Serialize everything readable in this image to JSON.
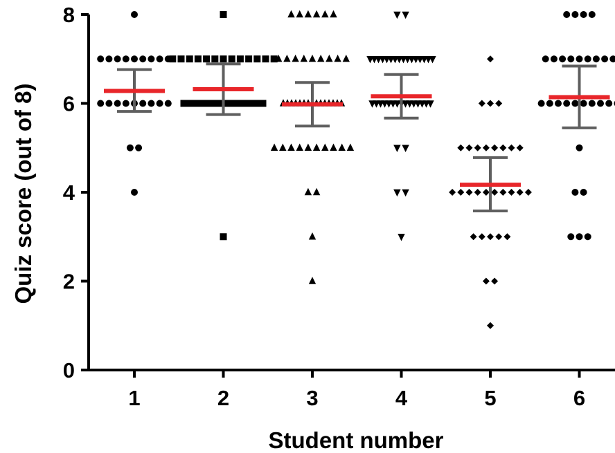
{
  "chart_data": {
    "type": "scatter",
    "xlabel": "Student number",
    "ylabel": "Quiz score (out of 8)",
    "title": "",
    "ylim": [
      0,
      8
    ],
    "yticks": [
      0,
      2,
      4,
      6,
      8
    ],
    "categories": [
      "1",
      "2",
      "3",
      "4",
      "5",
      "6"
    ],
    "grid": false,
    "legend": "none",
    "colors": {
      "points": "#000000",
      "mean": "#e8262a",
      "errorbar": "#5f5f5f",
      "axis": "#000000"
    },
    "series": [
      {
        "category": "1",
        "marker": "circle",
        "mean": 6.28,
        "err_low": 5.82,
        "err_high": 6.76,
        "points": [
          8,
          7,
          7,
          7,
          7,
          7,
          7,
          7,
          7,
          7,
          6,
          6,
          6,
          6,
          6,
          6,
          6,
          6,
          6,
          5,
          5,
          4
        ]
      },
      {
        "category": "2",
        "marker": "square",
        "mean": 6.32,
        "err_low": 5.75,
        "err_high": 6.89,
        "points": [
          8,
          7,
          7,
          7,
          7,
          7,
          7,
          7,
          7,
          7,
          7,
          7,
          7,
          7,
          6,
          6,
          6,
          6,
          6,
          6,
          6,
          6,
          6,
          6,
          6,
          6,
          6,
          6,
          6,
          6,
          6,
          6,
          6,
          6,
          3
        ]
      },
      {
        "category": "3",
        "marker": "triangle-up",
        "mean": 5.98,
        "err_low": 5.49,
        "err_high": 6.47,
        "points": [
          8,
          8,
          8,
          8,
          8,
          8,
          7,
          7,
          7,
          7,
          7,
          7,
          7,
          7,
          7,
          6,
          6,
          6,
          6,
          6,
          6,
          6,
          6,
          6,
          6,
          6,
          6,
          6,
          6,
          6,
          5,
          5,
          5,
          5,
          5,
          5,
          5,
          5,
          5,
          5,
          4,
          4,
          3,
          2
        ]
      },
      {
        "category": "4",
        "marker": "triangle-down",
        "mean": 6.16,
        "err_low": 5.67,
        "err_high": 6.65,
        "points": [
          8,
          8,
          7,
          7,
          7,
          7,
          7,
          7,
          7,
          7,
          7,
          7,
          7,
          7,
          7,
          7,
          7,
          7,
          6,
          6,
          6,
          6,
          6,
          6,
          6,
          6,
          6,
          6,
          6,
          6,
          6,
          6,
          6,
          5,
          5,
          4,
          4,
          3
        ]
      },
      {
        "category": "5",
        "marker": "diamond",
        "mean": 4.17,
        "err_low": 3.58,
        "err_high": 4.78,
        "points": [
          7,
          6,
          6,
          6,
          5,
          5,
          5,
          5,
          5,
          5,
          5,
          5,
          4,
          4,
          4,
          4,
          4,
          4,
          4,
          4,
          4,
          4,
          3,
          3,
          3,
          3,
          3,
          2,
          2,
          1
        ]
      },
      {
        "category": "6",
        "marker": "circle",
        "mean": 6.14,
        "err_low": 5.45,
        "err_high": 6.84,
        "points": [
          8,
          8,
          8,
          8,
          7,
          7,
          7,
          7,
          7,
          7,
          7,
          7,
          7,
          6,
          6,
          6,
          6,
          6,
          6,
          6,
          6,
          6,
          6,
          5,
          4,
          4,
          3,
          3,
          3
        ]
      }
    ]
  }
}
